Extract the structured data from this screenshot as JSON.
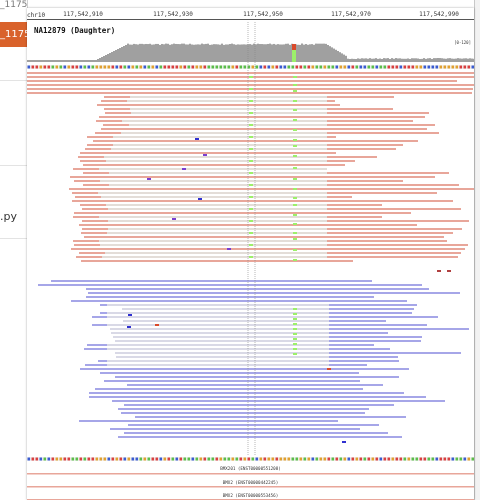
{
  "background": {
    "tab_label": "_1175",
    "top_label": "_1175",
    "file_label": ".py"
  },
  "browser": {
    "chromosome": "chr10",
    "ticks": [
      "117,542,910",
      "117,542,930",
      "117,542,950",
      "117,542,970",
      "117,542,990"
    ],
    "sample_name": "NA12879 (Daughter)",
    "coverage_range": "[0-120]"
  },
  "genes": [
    {
      "label": "BMX201 (ENST00000551208)"
    },
    {
      "label": "BMX2 (ENST00000442245)"
    },
    {
      "label": "BMX2 (ENST00000553456)"
    }
  ],
  "colors": {
    "forward_read": "#e8a69a",
    "reverse_read": "#a6a6e8",
    "soft_read": "#e3ddd8",
    "soft_read_blue": "#d9d9e6",
    "coverage": "#a0a0a0",
    "mismatch_g": "#9cf06a",
    "mismatch_c": "#3030d0",
    "mismatch_a": "#7a3fd0",
    "tab": "#d9622b"
  }
}
